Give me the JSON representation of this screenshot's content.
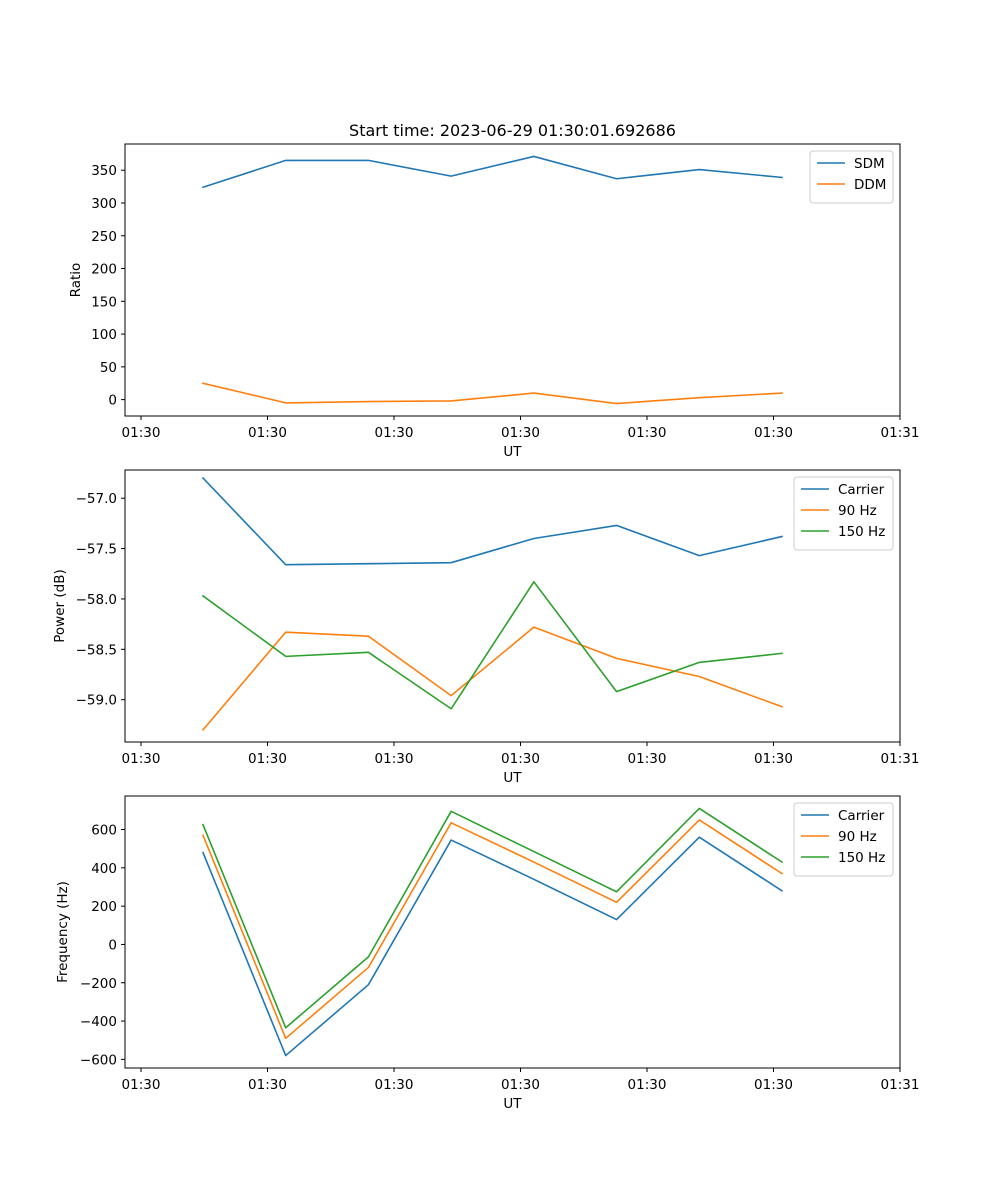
{
  "title": "Start time: 2023-06-29 01:30:01.692686",
  "colors": {
    "c0": "#1f77b4",
    "c1": "#ff7f0e",
    "c2": "#2ca02c"
  },
  "chart_data": [
    {
      "type": "line",
      "xlabel": "UT",
      "ylabel": "Ratio",
      "x_tick_labels": [
        "01:30",
        "01:30",
        "01:30",
        "01:30",
        "01:30",
        "01:30",
        "01:31"
      ],
      "y_ticks": [
        0,
        50,
        100,
        150,
        200,
        250,
        300,
        350
      ],
      "ylim": [
        -25,
        390
      ],
      "x": [
        1,
        2,
        3,
        4,
        5,
        6,
        7,
        8
      ],
      "series": [
        {
          "name": "SDM",
          "color": "#1f77b4",
          "values": [
            324,
            365,
            365,
            341,
            371,
            337,
            351,
            339
          ]
        },
        {
          "name": "DDM",
          "color": "#ff7f0e",
          "values": [
            25,
            -5,
            -3,
            -2,
            10,
            -6,
            3,
            10
          ]
        }
      ],
      "legend": "top-right",
      "grid": false
    },
    {
      "type": "line",
      "xlabel": "UT",
      "ylabel": "Power (dB)",
      "x_tick_labels": [
        "01:30",
        "01:30",
        "01:30",
        "01:30",
        "01:30",
        "01:30",
        "01:31"
      ],
      "y_ticks": [
        -57.0,
        -57.5,
        -58.0,
        -58.5,
        -59.0
      ],
      "y_tick_labels": [
        "−57.0",
        "−57.5",
        "−58.0",
        "−58.5",
        "−59.0"
      ],
      "ylim": [
        -59.42,
        -56.72
      ],
      "x": [
        1,
        2,
        3,
        4,
        5,
        6,
        7,
        8
      ],
      "series": [
        {
          "name": "Carrier",
          "color": "#1f77b4",
          "values": [
            -56.8,
            -57.66,
            -57.65,
            -57.64,
            -57.4,
            -57.27,
            -57.57,
            -57.38
          ]
        },
        {
          "name": "90 Hz",
          "color": "#ff7f0e",
          "values": [
            -59.3,
            -58.33,
            -58.37,
            -58.96,
            -58.28,
            -58.59,
            -58.77,
            -59.07
          ]
        },
        {
          "name": "150 Hz",
          "color": "#2ca02c",
          "values": [
            -57.97,
            -58.57,
            -58.53,
            -59.09,
            -57.83,
            -58.92,
            -58.63,
            -58.54
          ]
        }
      ],
      "legend": "top-right",
      "grid": false
    },
    {
      "type": "line",
      "xlabel": "UT",
      "ylabel": "Frequency (Hz)",
      "x_tick_labels": [
        "01:30",
        "01:30",
        "01:30",
        "01:30",
        "01:30",
        "01:30",
        "01:31"
      ],
      "y_ticks": [
        -600,
        -400,
        -200,
        0,
        200,
        400,
        600
      ],
      "y_tick_labels": [
        "−600",
        "−400",
        "−200",
        "0",
        "200",
        "400",
        "600"
      ],
      "ylim": [
        -645,
        775
      ],
      "x": [
        1,
        2,
        3,
        4,
        5,
        6,
        7,
        8
      ],
      "series": [
        {
          "name": "Carrier",
          "color": "#1f77b4",
          "values": [
            480,
            -580,
            -210,
            545,
            340,
            130,
            560,
            280
          ]
        },
        {
          "name": "90 Hz",
          "color": "#ff7f0e",
          "values": [
            570,
            -490,
            -120,
            635,
            430,
            220,
            650,
            370
          ]
        },
        {
          "name": "150 Hz",
          "color": "#2ca02c",
          "values": [
            625,
            -435,
            -65,
            695,
            485,
            275,
            710,
            430
          ]
        }
      ],
      "legend": "top-right",
      "grid": false
    }
  ]
}
